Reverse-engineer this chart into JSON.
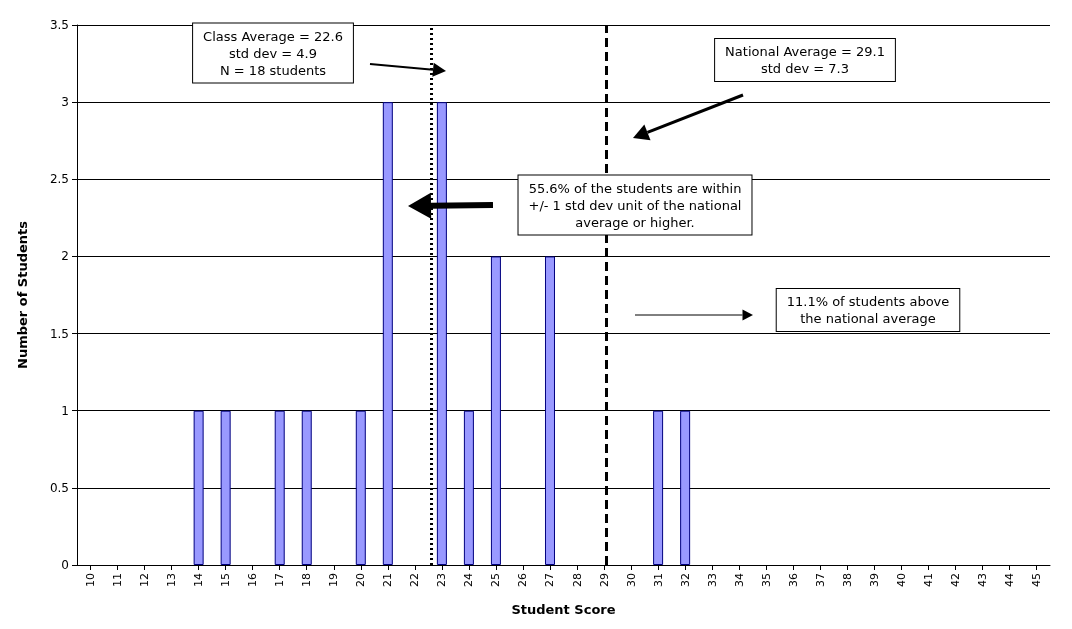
{
  "chart_data": {
    "type": "bar",
    "xlabel": "Student Score",
    "ylabel": "Number of Students",
    "x": [
      14,
      15,
      17,
      18,
      20,
      21,
      23,
      24,
      25,
      27,
      31,
      32
    ],
    "values": [
      1,
      1,
      1,
      1,
      1,
      3,
      3,
      1,
      2,
      2,
      1,
      1
    ],
    "color": "#9999ff",
    "xlim": [
      9.5,
      45.5
    ],
    "xticks": [
      10,
      11,
      12,
      13,
      14,
      15,
      16,
      17,
      18,
      19,
      20,
      21,
      22,
      23,
      24,
      25,
      26,
      27,
      28,
      29,
      30,
      31,
      32,
      33,
      34,
      35,
      36,
      37,
      38,
      39,
      40,
      41,
      42,
      43,
      44,
      45
    ],
    "ylim": [
      0,
      3.5
    ],
    "yticks": [
      0,
      0.5,
      1,
      1.5,
      2,
      2.5,
      3,
      3.5
    ],
    "grid": "y",
    "ref_lines": [
      {
        "axis": "x",
        "value": 22.6,
        "color": "#000000",
        "line_style": "dotted"
      },
      {
        "axis": "x",
        "value": 29.1,
        "color": "#000000",
        "line_style": "dashed"
      }
    ],
    "annotations": [
      "Class Average = 22.6\nstd dev = 4.9\nN = 18 students",
      "National Average = 29.1\nstd dev = 7.3",
      "55.6% of the students are within\n+/- 1 std dev unit of the national\naverage or higher.",
      "11.1% of students above\nthe national average"
    ]
  }
}
